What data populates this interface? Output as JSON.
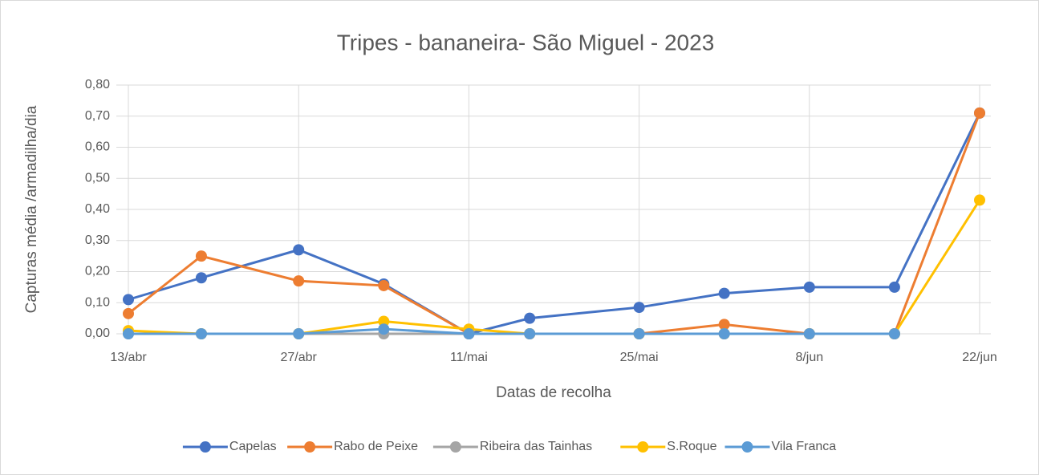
{
  "chart_data": {
    "type": "line",
    "title": "Tripes - bananeira- São Miguel - 2023",
    "x_label": "Datas de recolha",
    "y_label": "Capturas média /armadilha/dia",
    "x": [
      "04-13",
      "04-19",
      "04-27",
      "05-04",
      "05-11",
      "05-16",
      "05-25",
      "06-01",
      "06-08",
      "06-15",
      "06-22"
    ],
    "xlim": [
      "04-13",
      "06-22"
    ],
    "xticks": [
      {
        "value": "04-13",
        "label": "13/abr"
      },
      {
        "value": "04-27",
        "label": "27/abr"
      },
      {
        "value": "05-11",
        "label": "11/mai"
      },
      {
        "value": "05-25",
        "label": "25/mai"
      },
      {
        "value": "06-08",
        "label": "8/jun"
      },
      {
        "value": "06-22",
        "label": "22/jun"
      }
    ],
    "ylim": [
      0,
      0.8
    ],
    "yticks": [
      {
        "value": 0,
        "label": "0,00"
      },
      {
        "value": 0.1,
        "label": "0,10"
      },
      {
        "value": 0.2,
        "label": "0,20"
      },
      {
        "value": 0.3,
        "label": "0,30"
      },
      {
        "value": 0.4,
        "label": "0,40"
      },
      {
        "value": 0.5,
        "label": "0,50"
      },
      {
        "value": 0.6,
        "label": "0,60"
      },
      {
        "value": 0.7,
        "label": "0,70"
      },
      {
        "value": 0.8,
        "label": "0,80"
      }
    ],
    "grid": true,
    "legend": "bottom",
    "series": [
      {
        "name": "Capelas",
        "color": "#4472c4",
        "values": [
          0.11,
          0.18,
          0.27,
          0.16,
          0,
          0.05,
          0.085,
          0.13,
          0.15,
          0.15,
          0.71
        ]
      },
      {
        "name": "Rabo de Peixe",
        "color": "#ed7d31",
        "values": [
          0.065,
          0.25,
          0.17,
          0.155,
          0,
          0,
          0,
          0.03,
          0,
          0,
          0.71
        ]
      },
      {
        "name": "Ribeira das Tainhas",
        "color": "#a5a5a5",
        "values": [
          0,
          0,
          0,
          0,
          0,
          0,
          0,
          0,
          0,
          0,
          null
        ]
      },
      {
        "name": "S.Roque",
        "color": "#ffc000",
        "values": [
          0.01,
          0,
          0,
          0.04,
          0.015,
          0,
          0,
          0,
          0,
          0,
          0.43
        ]
      },
      {
        "name": "Vila Franca",
        "color": "#5b9bd5",
        "values": [
          0,
          0,
          0,
          0.015,
          0,
          0,
          0,
          0,
          0,
          0,
          null
        ]
      }
    ]
  }
}
